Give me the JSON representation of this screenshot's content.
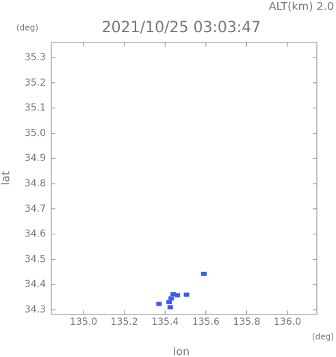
{
  "chart_data": {
    "type": "scatter",
    "title": "2021/10/25 03:03:47",
    "altitude_label": "ALT(km) 2.0",
    "y_unit": "(deg)",
    "x_unit": "(deg)",
    "xlabel": "lon",
    "ylabel": "lat",
    "color": "#3a5cf0",
    "x": [
      135.59,
      135.42,
      135.425,
      135.43,
      135.37,
      135.46,
      135.505,
      135.44
    ],
    "y": [
      34.442,
      34.33,
      34.31,
      34.345,
      34.323,
      34.357,
      34.36,
      34.362
    ],
    "xlim": [
      134.842,
      136.144
    ],
    "ylim": [
      34.281,
      35.36
    ],
    "xticks": [
      {
        "value": 135.0,
        "label": "135.0"
      },
      135.2,
      135.4,
      135.6,
      135.8,
      {
        "value": 136.0,
        "label": "136.0"
      }
    ],
    "yticks": [
      34.3,
      34.4,
      34.5,
      34.6,
      34.7,
      34.8,
      34.9,
      {
        "value": 35.0,
        "label": "35.0"
      },
      35.1,
      35.2,
      35.3
    ]
  }
}
